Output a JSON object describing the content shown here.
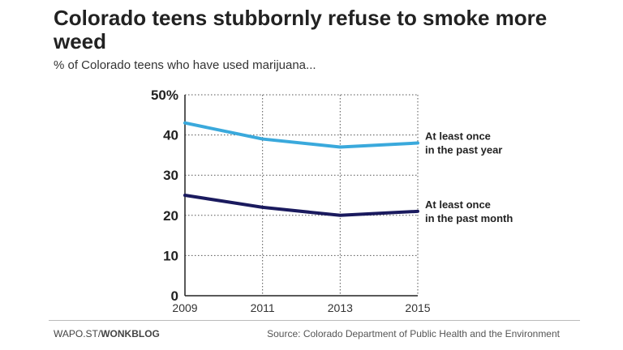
{
  "header": {
    "title": "Colorado teens stubbornly refuse to smoke more weed",
    "subtitle": "% of Colorado teens who have used marijuana..."
  },
  "footer": {
    "prefix": "WAPO.ST/",
    "brand": "WONKBLOG",
    "source": "Source: Colorado Department of Public Health and the Environment"
  },
  "chart_data": {
    "type": "line",
    "x": [
      2009,
      2011,
      2013,
      2015
    ],
    "x_tick_labels": [
      "2009",
      "2011",
      "2013",
      "2015"
    ],
    "y_tick_labels": [
      "0",
      "10",
      "20",
      "30",
      "40",
      "50%"
    ],
    "y_ticks": [
      0,
      10,
      20,
      30,
      40,
      50
    ],
    "xlim": [
      2009,
      2015
    ],
    "ylim": [
      0,
      50
    ],
    "grid": true,
    "series": [
      {
        "name": "At least once in the past year",
        "label_lines": [
          "At least once",
          "in the past year"
        ],
        "values": [
          43,
          39,
          37,
          38
        ],
        "color": "#3aa9dc"
      },
      {
        "name": "At least once in the past month",
        "label_lines": [
          "At least once",
          "in the past month"
        ],
        "values": [
          25,
          22,
          20,
          21
        ],
        "color": "#1a1a5e"
      }
    ]
  }
}
